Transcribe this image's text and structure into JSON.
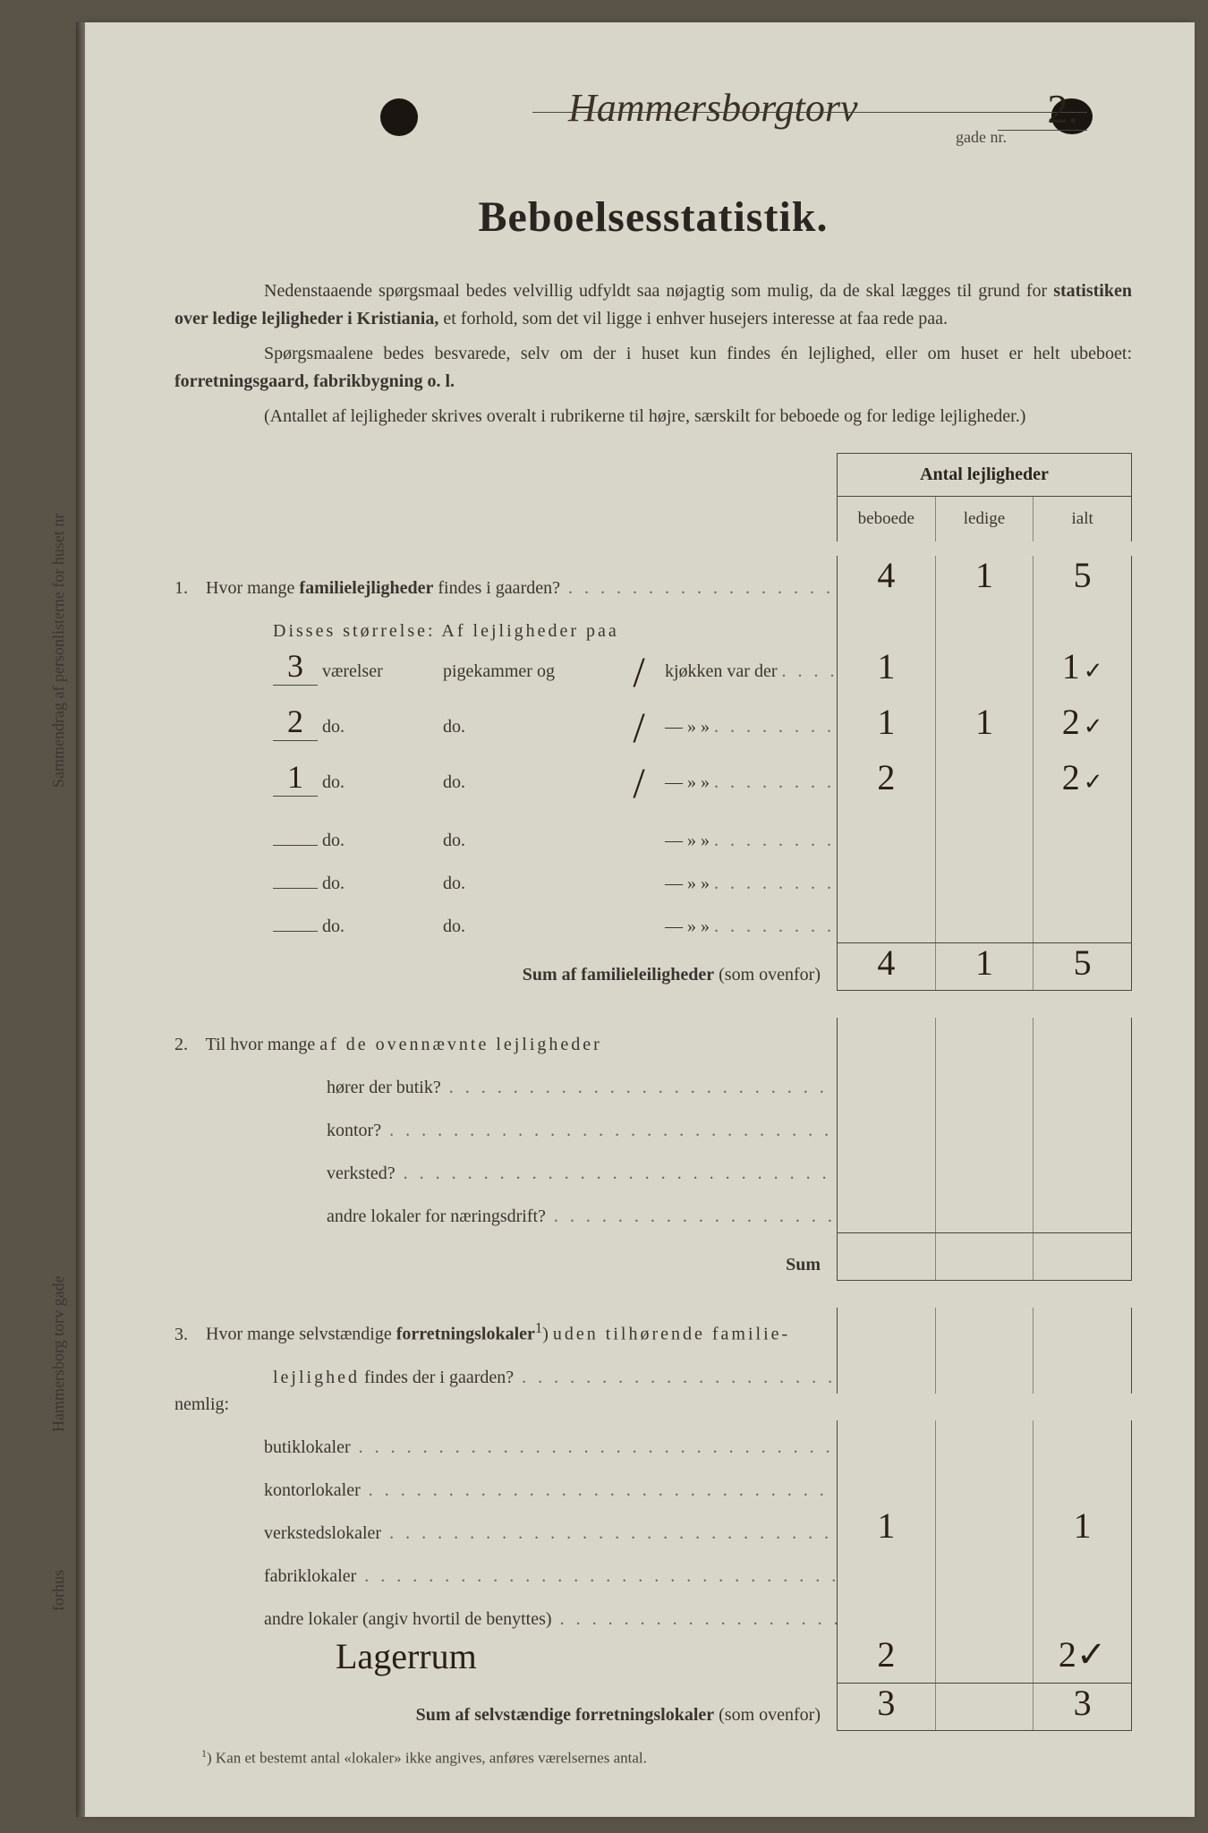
{
  "header": {
    "street_handwritten": "Hammersborgtorv",
    "gade_label": "gade nr.",
    "nr_handwritten": "2."
  },
  "title": "Beboelsesstatistik.",
  "intro": {
    "p1a": "Nedenstaaende spørgsmaal bedes velvillig udfyldt saa nøjagtig som mulig, da de skal lægges til grund for ",
    "p1b": "statistiken over ledige lejligheder i Kristiania,",
    "p1c": " et forhold, som det vil ligge i enhver husejers interesse at faa rede paa.",
    "p2a": "Spørgsmaalene bedes besvarede, selv om der i huset kun findes én lejlighed, eller om huset er helt ubeboet: ",
    "p2b": "forretningsgaard, fabrikbygning o. l.",
    "p3": "(Antallet af lejligheder skrives overalt i rubrikerne til højre, særskilt for beboede og for ledige lejligheder.)"
  },
  "colheader": {
    "top": "Antal lejligheder",
    "c1": "beboede",
    "c2": "ledige",
    "c3": "ialt"
  },
  "q1": {
    "num": "1.",
    "label": "Hvor mange ",
    "label_b": "familielejligheder",
    "label_c": " findes i gaarden?",
    "v_beboede": "4",
    "v_ledige": "1",
    "v_ialt": "5",
    "sizes_label": "Disses størrelse:   Af lejligheder paa",
    "room_rows": [
      {
        "vaer": "3",
        "vaer_lbl": "værelser",
        "pig": "pigekammer og",
        "kj": "1",
        "kj_lbl": "kjøkken var der",
        "b": "1",
        "l": "",
        "i": "1",
        "chk": "✓"
      },
      {
        "vaer": "2",
        "vaer_lbl": "do.",
        "pig": "do.",
        "kj": "1",
        "kj_lbl": "—     »     »",
        "b": "1",
        "l": "1",
        "i": "2",
        "chk": "✓"
      },
      {
        "vaer": "1",
        "vaer_lbl": "do.",
        "pig": "do.",
        "kj": "1",
        "kj_lbl": "—     »     »",
        "b": "2",
        "l": "",
        "i": "2",
        "chk": "✓"
      },
      {
        "vaer": "",
        "vaer_lbl": "do.",
        "pig": "do.",
        "kj": "",
        "kj_lbl": "—     »     »",
        "b": "",
        "l": "",
        "i": "",
        "chk": ""
      },
      {
        "vaer": "",
        "vaer_lbl": "do.",
        "pig": "do.",
        "kj": "",
        "kj_lbl": "—     »     »",
        "b": "",
        "l": "",
        "i": "",
        "chk": ""
      },
      {
        "vaer": "",
        "vaer_lbl": "do.",
        "pig": "do.",
        "kj": "",
        "kj_lbl": "—     »     »",
        "b": "",
        "l": "",
        "i": "",
        "chk": ""
      }
    ],
    "sum_label": "Sum af familieleiligheder",
    "sum_suffix": " (som ovenfor)",
    "sum_b": "4",
    "sum_l": "1",
    "sum_i": "5"
  },
  "q2": {
    "num": "2.",
    "label_a": "Til hvor mange ",
    "label_b": "af de ovennævnte lejligheder",
    "rows": [
      {
        "lbl": "hører der butik?"
      },
      {
        "lbl": "kontor?"
      },
      {
        "lbl": "verksted?"
      },
      {
        "lbl": "andre lokaler for næringsdrift?"
      }
    ],
    "sum_label": "Sum"
  },
  "q3": {
    "num": "3.",
    "label_a": "Hvor mange selvstændige ",
    "label_b": "forretningslokaler",
    "label_sup": "1",
    "label_c": ") ",
    "label_d": "uden tilhørende familie-",
    "label_e": "lejlighed",
    "label_f": " findes der i gaarden?",
    "nemlig": "nemlig:",
    "rows": [
      {
        "lbl": "butiklokaler",
        "b": "",
        "l": "",
        "i": ""
      },
      {
        "lbl": "kontorlokaler",
        "b": "",
        "l": "",
        "i": ""
      },
      {
        "lbl": "verkstedslokaler",
        "b": "1",
        "l": "",
        "i": "1"
      },
      {
        "lbl": "fabriklokaler",
        "b": "",
        "l": "",
        "i": ""
      },
      {
        "lbl": "andre lokaler (angiv hvortil de benyttes)",
        "b": "",
        "l": "",
        "i": ""
      }
    ],
    "hand_extra": "Lagerrum",
    "hand_b": "2",
    "hand_i": "2✓",
    "sum_label": "Sum af selvstændige forretningslokaler",
    "sum_suffix": " (som ovenfor)",
    "sum_b": "3",
    "sum_l": "",
    "sum_i": "3"
  },
  "footnote": {
    "sup": "1",
    "text": ")   Kan et bestemt antal «lokaler» ikke angives, anføres værelsernes antal."
  },
  "side": {
    "t1": "Sammendrag af personlisterne for huset nr",
    "t2": "Hammersborg torv   gade",
    "t3": "forhus"
  },
  "colors": {
    "paper": "#d8d6c8",
    "ink_print": "#3a3530",
    "ink_hand": "#2a2015",
    "rule": "#4a4540"
  }
}
